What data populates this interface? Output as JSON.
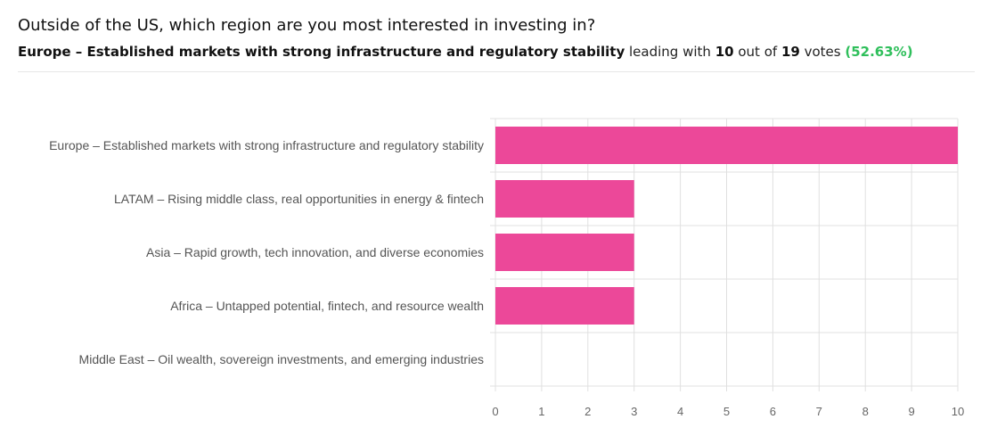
{
  "header": {
    "question": "Outside of the US, which region are you most interested in investing in?",
    "leader": "Europe – Established markets with strong infrastructure and regulatory stability",
    "leading_with": "leading with",
    "votes_leader": "10",
    "out_of": "out of",
    "votes_total": "19",
    "votes_word": "votes",
    "percent": "(52.63%)"
  },
  "colors": {
    "bar": "#ec4899",
    "grid": "#e0e0e0",
    "percent": "#2fbf5b"
  },
  "chart_data": {
    "type": "bar",
    "orientation": "horizontal",
    "categories": [
      "Europe – Established markets with strong infrastructure and regulatory stability",
      "LATAM – Rising middle class, real opportunities in energy & fintech",
      "Asia – Rapid growth, tech innovation, and diverse economies",
      "Africa – Untapped potential, fintech, and resource wealth",
      "Middle East – Oil wealth, sovereign investments, and emerging industries"
    ],
    "values": [
      10,
      3,
      3,
      3,
      0
    ],
    "xlim": [
      0,
      10
    ],
    "xticks": [
      "0",
      "1",
      "2",
      "3",
      "4",
      "5",
      "6",
      "7",
      "8",
      "9",
      "10"
    ],
    "grid": true
  }
}
